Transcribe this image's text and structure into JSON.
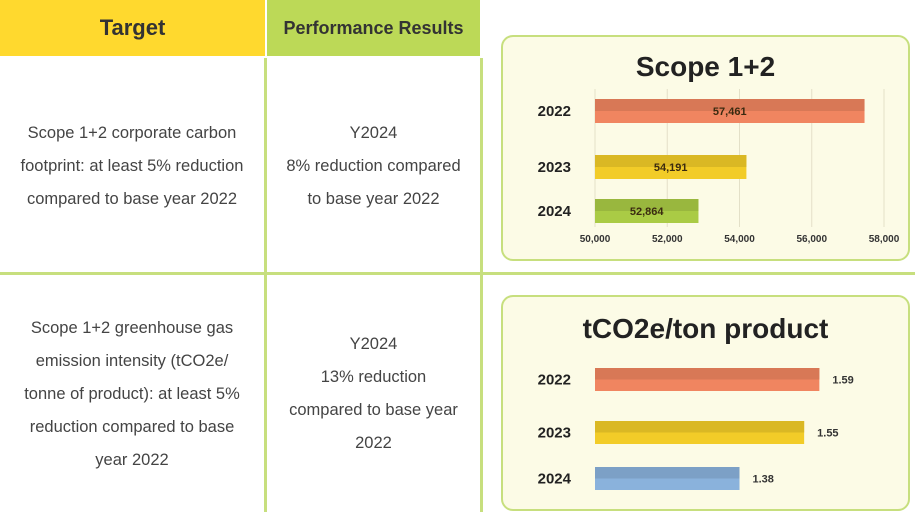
{
  "headers": {
    "target": "Target",
    "performance": "Performance Results"
  },
  "rows": [
    {
      "target_lines": [
        "Scope 1+2 corporate carbon",
        "footprint: at least 5% reduction",
        "compared to base year 2022"
      ],
      "result_lines": [
        "Y2024",
        "8% reduction compared",
        "to base year 2022"
      ]
    },
    {
      "target_lines": [
        "Scope 1+2 greenhouse gas",
        "emission intensity (tCO2e/",
        "tonne of product): at least 5%",
        "reduction compared to base",
        "year 2022"
      ],
      "result_lines": [
        "Y2024",
        "13% reduction",
        "compared to base year",
        "2022"
      ]
    }
  ],
  "chart_data": [
    {
      "type": "bar",
      "orientation": "horizontal",
      "title": "Scope 1+2",
      "categories": [
        "2022",
        "2023",
        "2024"
      ],
      "values": [
        57461,
        54191,
        52864
      ],
      "value_labels": [
        "57,461",
        "54,191",
        "52,864"
      ],
      "bar_colors": [
        "#f08560",
        "#f2cc28",
        "#aacb45"
      ],
      "xlim": [
        50000,
        58000
      ],
      "xticks": [
        50000,
        52000,
        54000,
        56000,
        58000
      ],
      "xtick_labels": [
        "50,000",
        "52,000",
        "54,000",
        "56,000",
        "58,000"
      ],
      "grid": true
    },
    {
      "type": "bar",
      "orientation": "horizontal",
      "title": "tCO2e/ton product",
      "categories": [
        "2022",
        "2023",
        "2024"
      ],
      "values": [
        1.59,
        1.55,
        1.38
      ],
      "value_labels": [
        "1.59",
        "1.55",
        "1.38"
      ],
      "bar_colors": [
        "#f08560",
        "#f2cc28",
        "#8ab2dc"
      ],
      "xlim": [
        1.0,
        1.76
      ],
      "grid": false
    }
  ]
}
